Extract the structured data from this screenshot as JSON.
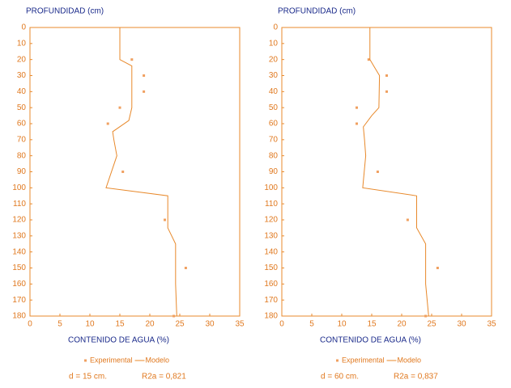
{
  "chart_data": [
    {
      "type": "line",
      "y_label": "PROFUNDIDAD (cm)",
      "x_label": "CONTENIDO DE AGUA (%)",
      "xlim": [
        0,
        35
      ],
      "xticks": [
        0,
        5,
        10,
        15,
        20,
        25,
        30,
        35
      ],
      "ylim": [
        0,
        180
      ],
      "yticks": [
        0,
        10,
        20,
        30,
        40,
        50,
        60,
        70,
        80,
        90,
        100,
        110,
        120,
        130,
        140,
        150,
        160,
        170,
        180
      ],
      "y_inverted": true,
      "series": [
        {
          "name": "Experimental",
          "kind": "points",
          "color": "#f0a060",
          "x": [
            17,
            19,
            19,
            15,
            13,
            15.5,
            22.5,
            26,
            24
          ],
          "values": [
            20,
            30,
            40,
            50,
            60,
            90,
            120,
            150,
            180
          ]
        },
        {
          "name": "Modelo",
          "kind": "line",
          "color": "#e8892b",
          "x": [
            15,
            15,
            17,
            17,
            16.5,
            13.8,
            14,
            14.5,
            12.7,
            23,
            23,
            24.3,
            24.3,
            24.5
          ],
          "values": [
            0,
            20,
            24,
            50,
            58,
            65,
            70,
            80,
            100,
            105,
            125,
            135,
            160,
            180
          ]
        }
      ],
      "depth_label": "d = 15 cm.",
      "r2_label": "R2a = 0,821"
    },
    {
      "type": "line",
      "y_label": "PROFUNDIDAD (cm)",
      "x_label": "CONTENIDO DE AGUA (%)",
      "xlim": [
        0,
        35
      ],
      "xticks": [
        0,
        5,
        10,
        15,
        20,
        25,
        30,
        35
      ],
      "ylim": [
        0,
        180
      ],
      "yticks": [
        0,
        10,
        20,
        30,
        40,
        50,
        60,
        70,
        80,
        90,
        100,
        110,
        120,
        130,
        140,
        150,
        160,
        170,
        180
      ],
      "y_inverted": true,
      "series": [
        {
          "name": "Experimental",
          "kind": "points",
          "color": "#f0a060",
          "x": [
            14.5,
            17.5,
            17.5,
            12.5,
            12.5,
            16,
            21,
            26,
            24
          ],
          "values": [
            20,
            30,
            40,
            50,
            60,
            90,
            120,
            150,
            180
          ]
        },
        {
          "name": "Modelo",
          "kind": "line",
          "color": "#e8892b",
          "x": [
            14.7,
            14.7,
            15.5,
            16.3,
            16.2,
            15,
            13.6,
            13.8,
            14,
            13.5,
            22.5,
            22.5,
            24,
            24,
            24.5
          ],
          "values": [
            0,
            20,
            25,
            30,
            50,
            55,
            62,
            70,
            80,
            100,
            105,
            125,
            135,
            160,
            180
          ]
        }
      ],
      "depth_label": "d = 60 cm.",
      "r2_label": "R2a = 0,837"
    }
  ]
}
